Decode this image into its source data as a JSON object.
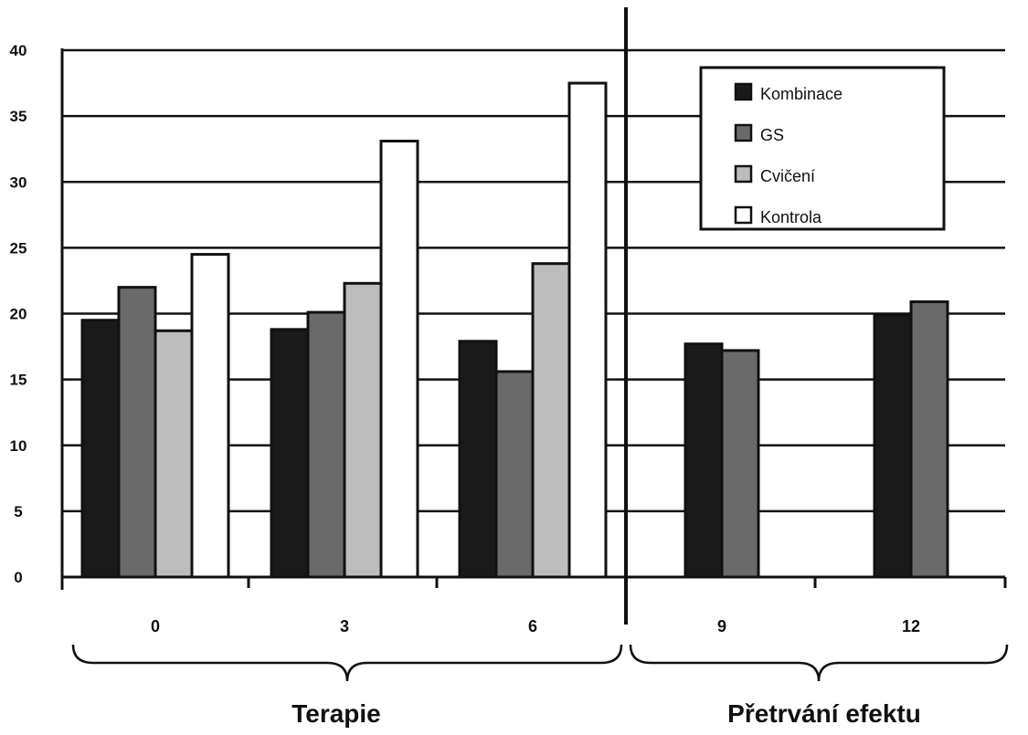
{
  "chart_data": {
    "type": "bar",
    "title": "",
    "xlabel": "",
    "ylabel": "",
    "ylim": [
      0,
      40
    ],
    "yticks": [
      "0",
      "5",
      "10",
      "15",
      "20",
      "25",
      "30",
      "35",
      "40"
    ],
    "grid": true,
    "legend_position": "top-right",
    "categories": [
      "0",
      "3",
      "6",
      "9",
      "12"
    ],
    "series": [
      {
        "name": "Kombinace",
        "color": "#1a1a1a",
        "values": [
          19.5,
          18.8,
          17.9,
          17.7,
          19.9
        ]
      },
      {
        "name": "GS",
        "color": "#6a6a6a",
        "values": [
          22.0,
          20.1,
          15.6,
          17.2,
          20.9
        ]
      },
      {
        "name": "Cvičení",
        "color": "#bdbdbd",
        "values": [
          18.7,
          22.3,
          23.8,
          null,
          null
        ]
      },
      {
        "name": "Kontrola",
        "color": "#ffffff",
        "values": [
          24.5,
          33.1,
          37.5,
          null,
          null
        ]
      }
    ],
    "groups": [
      {
        "label": "Terapie",
        "categories": [
          "0",
          "3",
          "6"
        ]
      },
      {
        "label": "Přetrvání efektu",
        "categories": [
          "9",
          "12"
        ]
      }
    ]
  }
}
